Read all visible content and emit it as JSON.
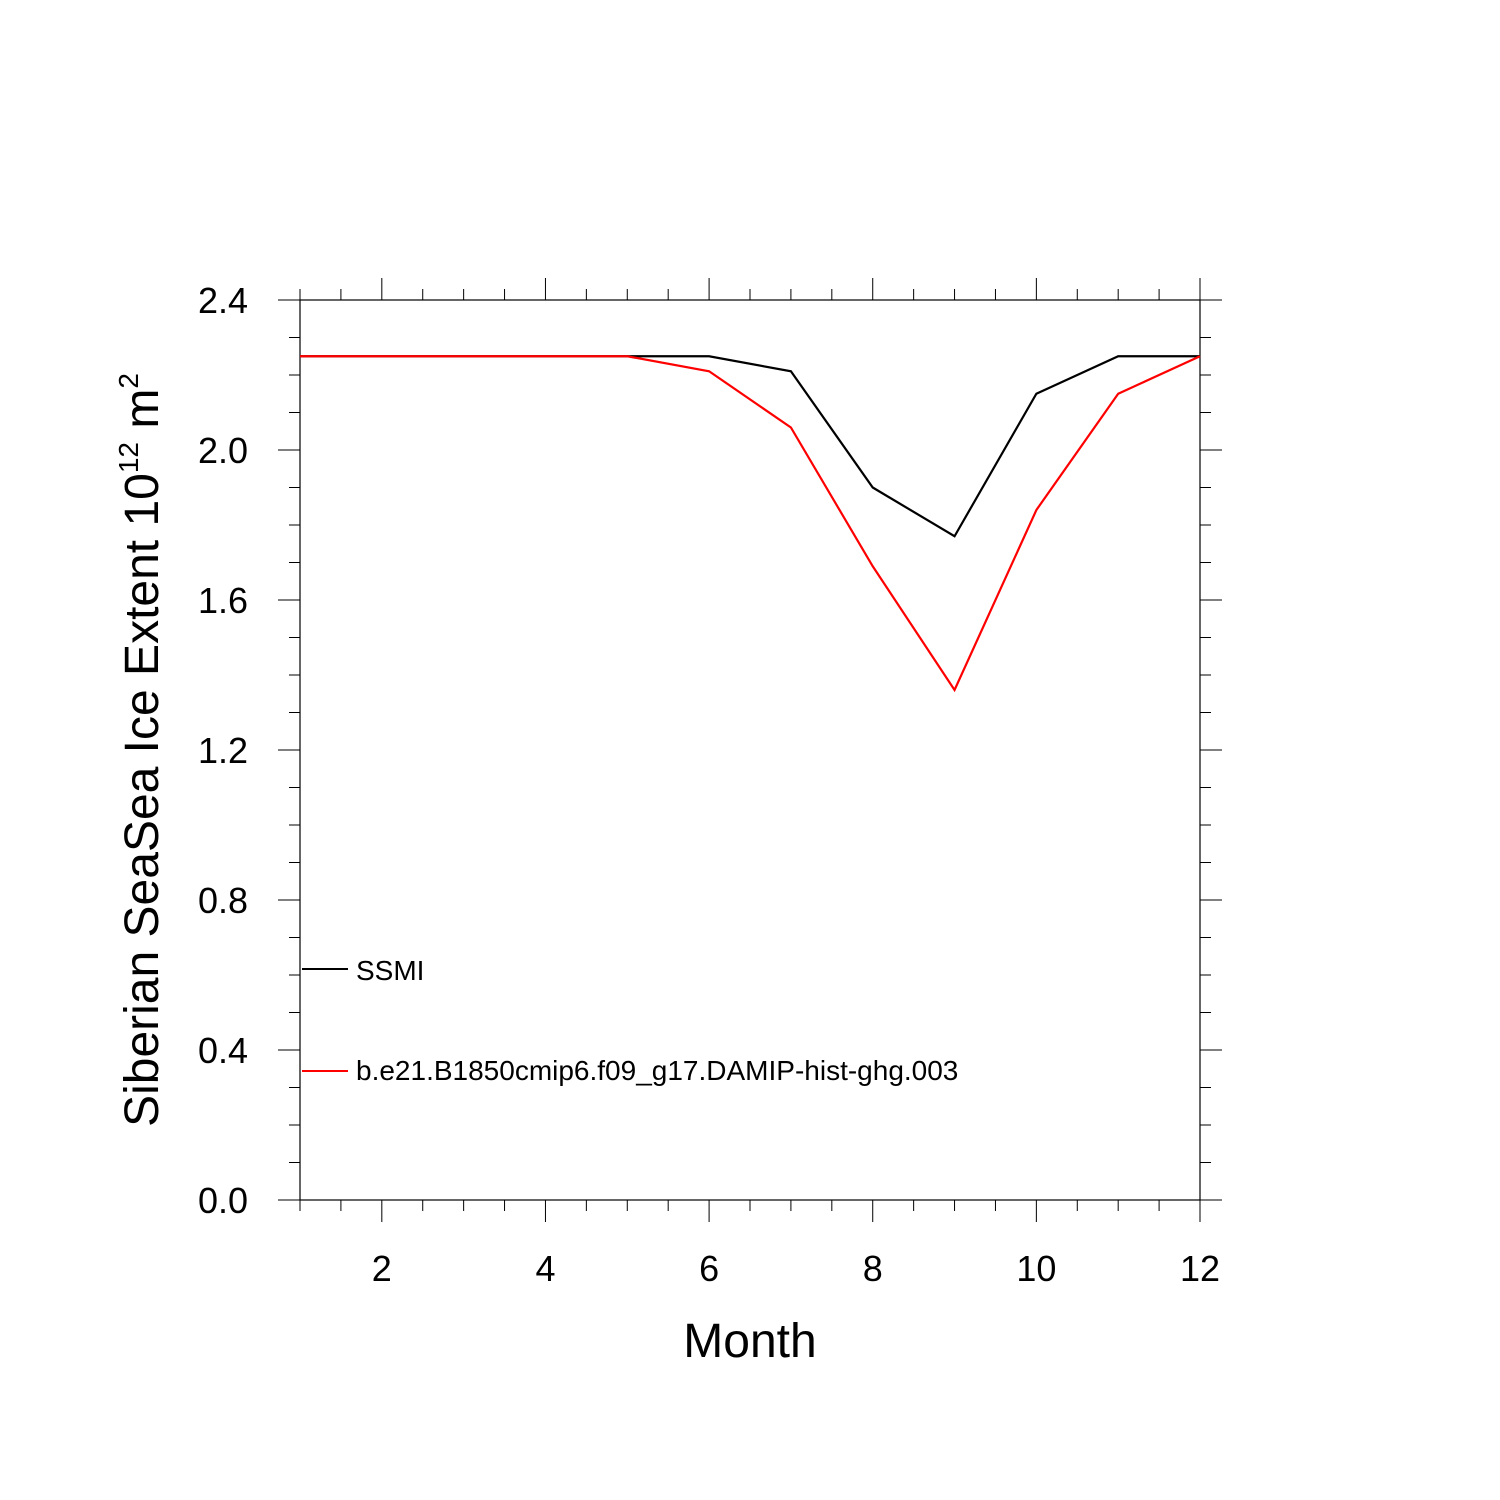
{
  "chart_data": {
    "type": "line",
    "title": "",
    "xlabel": "Month",
    "ylabel_main": "Siberian SeaSea Ice Extent 10",
    "ylabel_sup1": "12",
    "ylabel_mid": " m",
    "ylabel_sup2": "2",
    "xlim": [
      1,
      12
    ],
    "ylim": [
      0,
      2.4
    ],
    "xticks": [
      2,
      4,
      6,
      8,
      10,
      12
    ],
    "yticks": [
      0.0,
      0.4,
      0.8,
      1.2,
      1.6,
      2.0,
      2.4
    ],
    "ytick_labels": [
      "0.0",
      "0.4",
      "0.8",
      "1.2",
      "1.6",
      "2.0",
      "2.4"
    ],
    "x": [
      1,
      2,
      3,
      4,
      5,
      6,
      7,
      8,
      9,
      10,
      11,
      12
    ],
    "series": [
      {
        "name": "SSMI",
        "color": "#000000",
        "values": [
          2.25,
          2.25,
          2.25,
          2.25,
          2.25,
          2.25,
          2.21,
          1.9,
          1.77,
          2.15,
          2.25,
          2.25
        ]
      },
      {
        "name": "b.e21.B1850cmip6.f09_g17.DAMIP-hist-ghg.003",
        "color": "#ff0000",
        "values": [
          2.25,
          2.25,
          2.25,
          2.25,
          2.25,
          2.21,
          2.06,
          1.69,
          1.36,
          1.84,
          2.15,
          2.25
        ]
      }
    ],
    "grid": false,
    "legend_position": "bottom-left"
  }
}
